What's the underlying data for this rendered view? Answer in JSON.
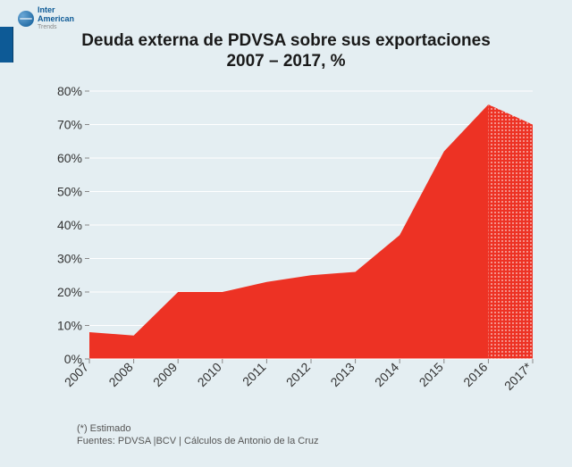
{
  "logo": {
    "line1": "Inter",
    "line2": "American",
    "sub": "Trends"
  },
  "title_line1": "Deuda externa de PDVSA sobre sus exportaciones",
  "title_line2": "2007 – 2017, %",
  "footnote_line1": "(*) Estimado",
  "footnote_line2": "Fuentes: PDVSA |BCV  | Cálculos de Antonio de la Cruz",
  "chart": {
    "type": "area",
    "categories": [
      "2007",
      "2008",
      "2009",
      "2010",
      "2011",
      "2012",
      "2013",
      "2014",
      "2015",
      "2016",
      "2017*"
    ],
    "values": [
      8,
      7,
      20,
      20,
      23,
      25,
      26,
      37,
      62,
      76,
      70
    ],
    "estimate_index": 10,
    "ylim": [
      0,
      80
    ],
    "ytick_step": 10,
    "y_suffix": "%",
    "fill_color": "#ed3224",
    "fill_opacity": 1.0,
    "estimate_pattern_color": "#ffffff",
    "background_color": "#e4eef2",
    "grid_color": "#ffffff",
    "tick_color": "#888888",
    "label_color": "#333333",
    "title_fontsize": 19,
    "label_fontsize": 14,
    "xlabel_rotation": -45
  }
}
